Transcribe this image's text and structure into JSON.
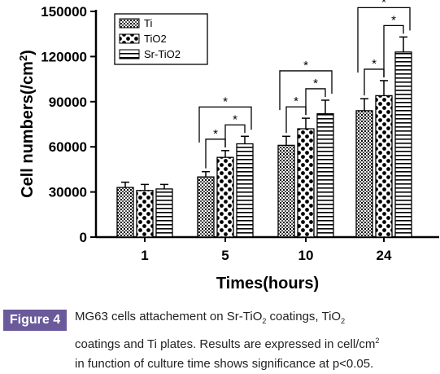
{
  "chart_data": {
    "type": "bar",
    "title": "",
    "xlabel": "Times(hours)",
    "ylabel_main": "Cell numbers(/cm",
    "ylabel_sup": "2",
    "ylabel_close": ")",
    "categories": [
      "1",
      "5",
      "10",
      "24"
    ],
    "ylim": [
      0,
      150000
    ],
    "yticks": [
      "0",
      "30000",
      "60000",
      "90000",
      "120000",
      "150000"
    ],
    "grid": false,
    "legend_position": "top-left",
    "series": [
      {
        "name": "Ti",
        "pattern": "dots",
        "values": [
          33000,
          40000,
          61000,
          84000
        ],
        "errors": [
          3500,
          3500,
          6000,
          8000
        ]
      },
      {
        "name": "TiO2",
        "pattern": "checker",
        "values": [
          31000,
          53000,
          72000,
          94000
        ],
        "errors": [
          4000,
          4500,
          7000,
          10000
        ]
      },
      {
        "name": "Sr-TiO2",
        "pattern": "stripes",
        "values": [
          32000,
          62000,
          82000,
          123000
        ],
        "errors": [
          3000,
          5000,
          9000,
          10000
        ]
      }
    ],
    "significance_marker": "*"
  },
  "caption": {
    "label": "Figure 4",
    "line1_a": "MG63 cells attachement on Sr-TiO",
    "sub1": "2",
    "line1_b": " coatings, TiO",
    "sub2": "2",
    "line2_a": "coatings and Ti plates. Results are expressed in cell/cm",
    "sup1": "2",
    "line3": "in function of culture time shows significance at p<0.05."
  },
  "colors": {
    "bars": "#000000",
    "label_bg": "#6a5a9c",
    "caption_text": "#222222"
  }
}
